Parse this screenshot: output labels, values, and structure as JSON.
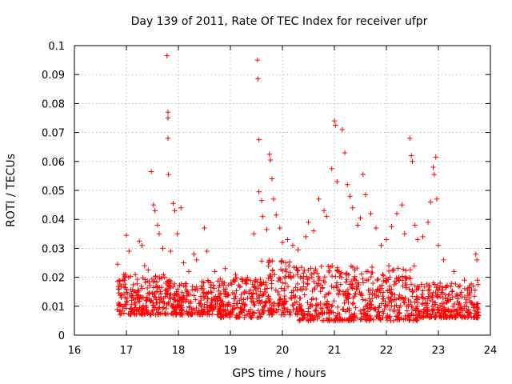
{
  "chart_data": {
    "type": "scatter",
    "title": "Day 139 of 2011, Rate Of TEC Index for receiver ufpr",
    "xlabel": "GPS time / hours",
    "ylabel": "ROTI / TECUs",
    "xlim": [
      16,
      24
    ],
    "ylim": [
      0,
      0.1
    ],
    "xticks": [
      16,
      17,
      18,
      19,
      20,
      21,
      22,
      23,
      24
    ],
    "yticks": [
      0,
      0.01,
      0.02,
      0.03,
      0.04,
      0.05,
      0.06,
      0.07,
      0.08,
      0.09,
      0.1
    ],
    "xtick_labels": [
      "16",
      "17",
      "18",
      "19",
      "20",
      "21",
      "22",
      "23",
      "24"
    ],
    "ytick_labels": [
      "0",
      "0.01",
      "0.02",
      "0.03",
      "0.04",
      "0.05",
      "0.06",
      "0.07",
      "0.08",
      "0.09",
      "0.1"
    ],
    "grid": true,
    "marker": "plus",
    "color": "#ff0000",
    "series": [
      {
        "points": [
          [
            16.83,
            0.0245
          ],
          [
            16.86,
            0.016
          ],
          [
            16.9,
            0.013
          ],
          [
            16.95,
            0.021
          ],
          [
            17.0,
            0.0345
          ],
          [
            17.05,
            0.029
          ],
          [
            17.1,
            0.012
          ],
          [
            17.2,
            0.0085
          ],
          [
            17.25,
            0.0325
          ],
          [
            17.3,
            0.031
          ],
          [
            17.35,
            0.024
          ],
          [
            17.42,
            0.0225
          ],
          [
            17.48,
            0.0565
          ],
          [
            17.52,
            0.045
          ],
          [
            17.55,
            0.043
          ],
          [
            17.6,
            0.038
          ],
          [
            17.63,
            0.035
          ],
          [
            17.7,
            0.03
          ],
          [
            17.78,
            0.0965
          ],
          [
            17.8,
            0.077
          ],
          [
            17.8,
            0.075
          ],
          [
            17.8,
            0.068
          ],
          [
            17.81,
            0.0555
          ],
          [
            17.85,
            0.029
          ],
          [
            17.9,
            0.0455
          ],
          [
            17.93,
            0.043
          ],
          [
            17.98,
            0.035
          ],
          [
            18.05,
            0.044
          ],
          [
            18.1,
            0.025
          ],
          [
            18.2,
            0.022
          ],
          [
            18.3,
            0.028
          ],
          [
            18.35,
            0.026
          ],
          [
            18.5,
            0.037
          ],
          [
            18.55,
            0.029
          ],
          [
            18.7,
            0.022
          ],
          [
            18.9,
            0.023
          ],
          [
            19.1,
            0.021
          ],
          [
            19.3,
            0.018
          ],
          [
            19.45,
            0.035
          ],
          [
            19.52,
            0.095
          ],
          [
            19.53,
            0.0885
          ],
          [
            19.55,
            0.0675
          ],
          [
            19.55,
            0.0495
          ],
          [
            19.6,
            0.0465
          ],
          [
            19.62,
            0.041
          ],
          [
            19.7,
            0.0365
          ],
          [
            19.75,
            0.0625
          ],
          [
            19.77,
            0.0605
          ],
          [
            19.8,
            0.054
          ],
          [
            19.83,
            0.047
          ],
          [
            19.88,
            0.0415
          ],
          [
            19.95,
            0.037
          ],
          [
            20.0,
            0.032
          ],
          [
            20.1,
            0.033
          ],
          [
            20.2,
            0.031
          ],
          [
            20.3,
            0.0295
          ],
          [
            20.45,
            0.034
          ],
          [
            20.5,
            0.039
          ],
          [
            20.6,
            0.036
          ],
          [
            20.7,
            0.047
          ],
          [
            20.8,
            0.043
          ],
          [
            20.85,
            0.041
          ],
          [
            20.95,
            0.0575
          ],
          [
            21.0,
            0.074
          ],
          [
            21.02,
            0.0725
          ],
          [
            21.05,
            0.053
          ],
          [
            21.15,
            0.071
          ],
          [
            21.2,
            0.063
          ],
          [
            21.25,
            0.052
          ],
          [
            21.3,
            0.048
          ],
          [
            21.35,
            0.044
          ],
          [
            21.45,
            0.038
          ],
          [
            21.5,
            0.0405
          ],
          [
            21.55,
            0.0555
          ],
          [
            21.6,
            0.0485
          ],
          [
            21.7,
            0.042
          ],
          [
            21.8,
            0.037
          ],
          [
            21.9,
            0.031
          ],
          [
            22.0,
            0.033
          ],
          [
            22.1,
            0.0375
          ],
          [
            22.2,
            0.042
          ],
          [
            22.3,
            0.045
          ],
          [
            22.35,
            0.035
          ],
          [
            22.45,
            0.068
          ],
          [
            22.48,
            0.062
          ],
          [
            22.5,
            0.06
          ],
          [
            22.55,
            0.038
          ],
          [
            22.6,
            0.033
          ],
          [
            22.7,
            0.034
          ],
          [
            22.8,
            0.039
          ],
          [
            22.85,
            0.046
          ],
          [
            22.9,
            0.058
          ],
          [
            22.92,
            0.0555
          ],
          [
            22.95,
            0.0615
          ],
          [
            22.97,
            0.047
          ],
          [
            23.0,
            0.031
          ],
          [
            23.1,
            0.026
          ],
          [
            23.3,
            0.022
          ],
          [
            23.5,
            0.019
          ],
          [
            23.6,
            0.017
          ],
          [
            23.72,
            0.028
          ],
          [
            23.74,
            0.026
          ],
          [
            23.75,
            0.019
          ]
        ]
      }
    ],
    "dense_bands": [
      [
        16.82,
        17.75,
        0.007,
        0.021
      ],
      [
        17.75,
        18.8,
        0.007,
        0.019
      ],
      [
        18.8,
        19.6,
        0.006,
        0.02
      ],
      [
        19.6,
        20.3,
        0.007,
        0.026
      ],
      [
        20.32,
        21.6,
        0.005,
        0.024
      ],
      [
        21.6,
        22.6,
        0.005,
        0.024
      ],
      [
        22.6,
        23.78,
        0.006,
        0.018
      ]
    ]
  }
}
